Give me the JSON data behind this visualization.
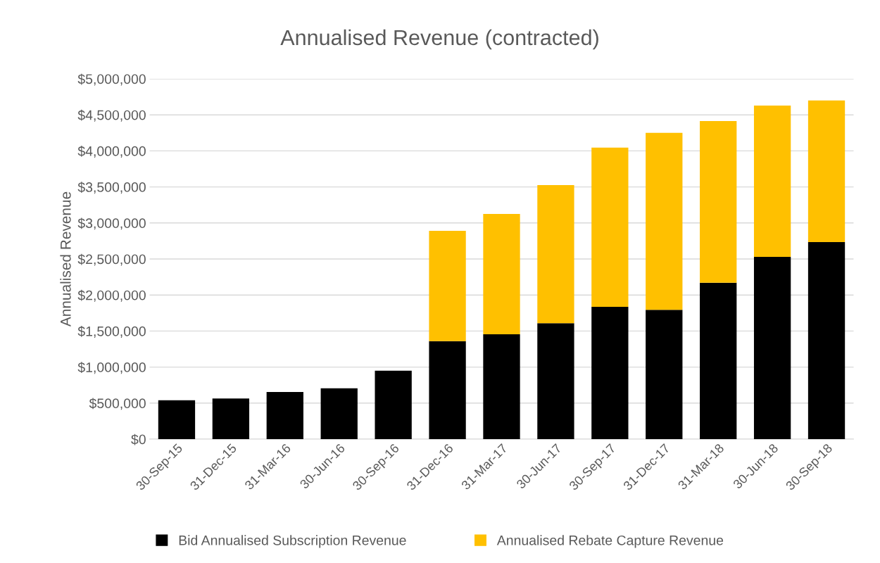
{
  "chart_data": {
    "type": "bar",
    "title": "Annualised Revenue (contracted)",
    "ylabel": "Annualised Revenue",
    "stacked": true,
    "grid": "y",
    "legend": "bottom",
    "categories": [
      "30-Sep-15",
      "31-Dec-15",
      "31-Mar-16",
      "30-Jun-16",
      "30-Sep-16",
      "31-Dec-16",
      "31-Mar-17",
      "30-Jun-17",
      "30-Sep-17",
      "31-Dec-17",
      "31-Mar-18",
      "30-Jun-18",
      "30-Sep-18"
    ],
    "series": [
      {
        "name": "Bid Annualised Subscription Revenue",
        "color": "#000000",
        "values": [
          540000,
          565000,
          655000,
          705000,
          950000,
          1360000,
          1455000,
          1610000,
          1835000,
          1795000,
          2170000,
          2530000,
          2735000
        ]
      },
      {
        "name": "Annualised Rebate Capture Revenue",
        "color": "#ffc000",
        "values": [
          0,
          0,
          0,
          0,
          0,
          1530000,
          1670000,
          1915000,
          2210000,
          2455000,
          2245000,
          2100000,
          1965000
        ]
      }
    ],
    "ylim": [
      0,
      5000000
    ],
    "yticks": [
      {
        "value": 0,
        "label": "$0"
      },
      {
        "value": 500000,
        "label": "$500,000"
      },
      {
        "value": 1000000,
        "label": "$1,000,000"
      },
      {
        "value": 1500000,
        "label": "$1,500,000"
      },
      {
        "value": 2000000,
        "label": "$2,000,000"
      },
      {
        "value": 2500000,
        "label": "$2,500,000"
      },
      {
        "value": 3000000,
        "label": "$3,000,000"
      },
      {
        "value": 3500000,
        "label": "$3,500,000"
      },
      {
        "value": 4000000,
        "label": "$4,000,000"
      },
      {
        "value": 4500000,
        "label": "$4,500,000"
      },
      {
        "value": 5000000,
        "label": "$5,000,000"
      }
    ]
  }
}
